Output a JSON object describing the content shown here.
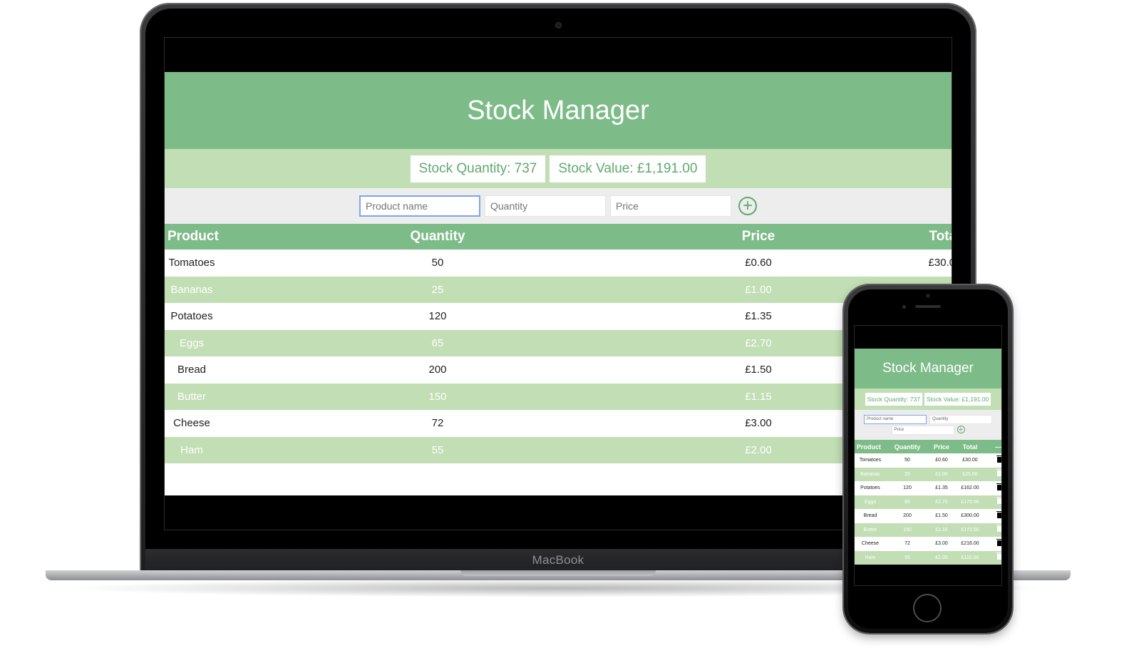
{
  "device_label": "MacBook",
  "app": {
    "title": "Stock Manager",
    "stats": {
      "quantity_text": "Stock Quantity: 737",
      "value_text": "Stock Value: £1,191.00"
    },
    "form": {
      "product_placeholder": "Product name",
      "quantity_placeholder": "Quantity",
      "price_placeholder": "Price",
      "add_icon": "plus-circle-icon"
    },
    "table": {
      "headers": [
        "Product",
        "Quantity",
        "Price",
        "Total",
        "---"
      ],
      "rows": [
        {
          "product": "Tomatoes",
          "quantity": "50",
          "price": "£0.60",
          "total": "£30.00"
        },
        {
          "product": "Bananas",
          "quantity": "25",
          "price": "£1.00",
          "total": "£25.00"
        },
        {
          "product": "Potatoes",
          "quantity": "120",
          "price": "£1.35",
          "total": "£162.00"
        },
        {
          "product": "Eggs",
          "quantity": "65",
          "price": "£2.70",
          "total": "£175.50"
        },
        {
          "product": "Bread",
          "quantity": "200",
          "price": "£1.50",
          "total": "£300.00"
        },
        {
          "product": "Butter",
          "quantity": "150",
          "price": "£1.15",
          "total": "£172.50"
        },
        {
          "product": "Cheese",
          "quantity": "72",
          "price": "£3.00",
          "total": "£216.00"
        },
        {
          "product": "Ham",
          "quantity": "55",
          "price": "£2.00",
          "total": "£110.00"
        }
      ]
    },
    "colors": {
      "header_green": "#7dbb88",
      "light_green": "#c1deb4",
      "accent_green": "#5fa96e"
    }
  }
}
